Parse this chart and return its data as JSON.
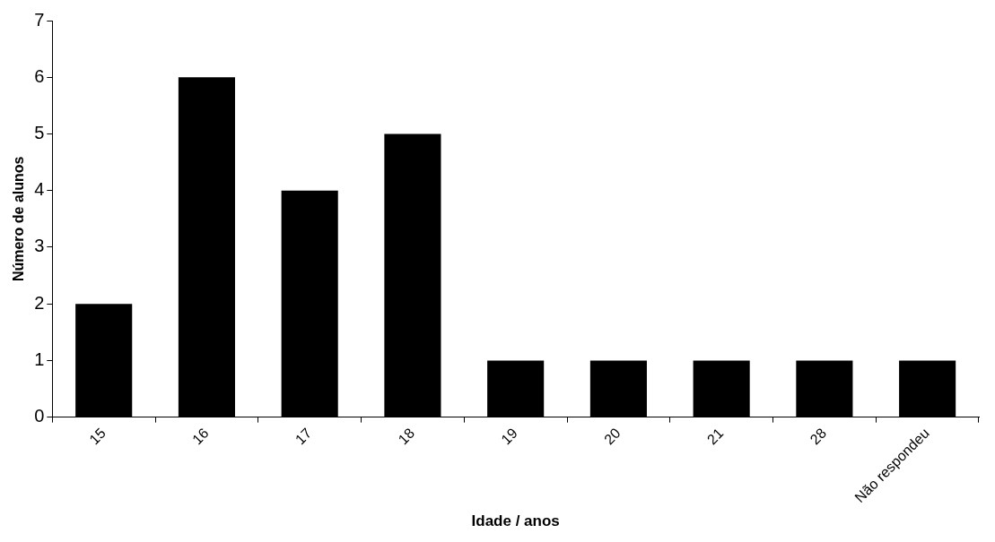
{
  "chart_data": {
    "type": "bar",
    "xlabel": "Idade / anos",
    "ylabel": "Número de alunos",
    "categories": [
      "15",
      "16",
      "17",
      "18",
      "19",
      "20",
      "21",
      "28",
      "Não respondeu"
    ],
    "values": [
      2,
      6,
      4,
      5,
      1,
      1,
      1,
      1,
      1
    ],
    "color": "#000000",
    "ylim": [
      0,
      7
    ],
    "yticks": [
      0,
      1,
      2,
      3,
      4,
      5,
      6,
      7
    ]
  }
}
